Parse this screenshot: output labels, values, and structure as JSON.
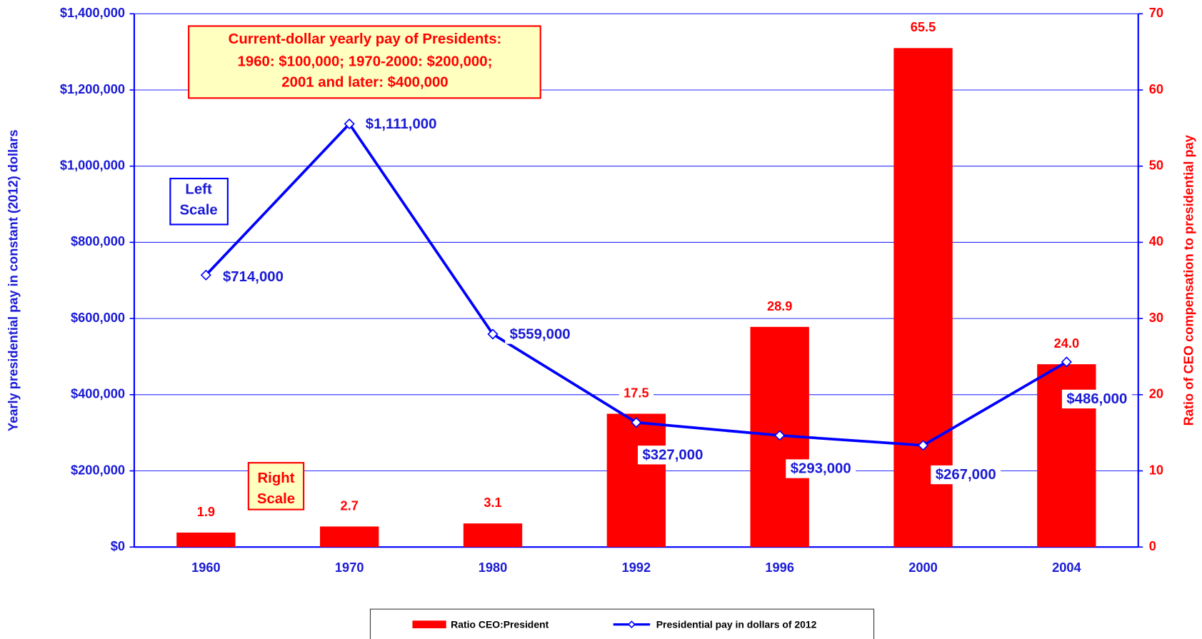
{
  "chart_data": {
    "type": "bar",
    "categories": [
      "1960",
      "1970",
      "1980",
      "1992",
      "1996",
      "2000",
      "2004"
    ],
    "series": [
      {
        "name": "Ratio CEO:President",
        "type": "bar",
        "axis": "y2",
        "color": "#ff0000",
        "values": [
          1.9,
          2.7,
          3.1,
          17.5,
          28.9,
          65.5,
          24.0
        ],
        "value_labels": [
          "1.9",
          "2.7",
          "3.1",
          "17.5",
          "28.9",
          "65.5",
          "24.0"
        ]
      },
      {
        "name": "Presidential pay in dollars of 2012",
        "type": "line",
        "axis": "y",
        "color": "#0000ff",
        "values": [
          714000,
          1111000,
          559000,
          327000,
          293000,
          267000,
          486000
        ],
        "value_labels": [
          "$714,000",
          "$1,111,000",
          "$559,000",
          "$327,000",
          "$293,000",
          "$267,000",
          "$486,000"
        ]
      }
    ],
    "ylabel": "Yearly presidential pay in constant (2012) dollars",
    "y2label": "Ratio of CEO compensation to presidential pay",
    "ylim": [
      0,
      1400000
    ],
    "yticks": [
      {
        "value": 0,
        "label": "$0"
      },
      {
        "value": 200000,
        "label": "$200,000"
      },
      {
        "value": 400000,
        "label": "$400,000"
      },
      {
        "value": 600000,
        "label": "$600,000"
      },
      {
        "value": 800000,
        "label": "$800,000"
      },
      {
        "value": 1000000,
        "label": "$1,000,000"
      },
      {
        "value": 1200000,
        "label": "$1,200,000"
      },
      {
        "value": 1400000,
        "label": "$1,400,000"
      }
    ],
    "y2lim": [
      0,
      70
    ],
    "y2ticks": [
      0,
      10,
      20,
      30,
      40,
      50,
      60,
      70
    ],
    "grid": true,
    "legend": "bottom",
    "annotations": {
      "note": [
        "Current-dollar yearly pay of Presidents:",
        "1960:  $100,000; 1970-2000:  $200,000;",
        "2001 and later:  $400,000"
      ],
      "left_scale": [
        "Left",
        "Scale"
      ],
      "right_scale": [
        "Right",
        "Scale"
      ]
    }
  }
}
